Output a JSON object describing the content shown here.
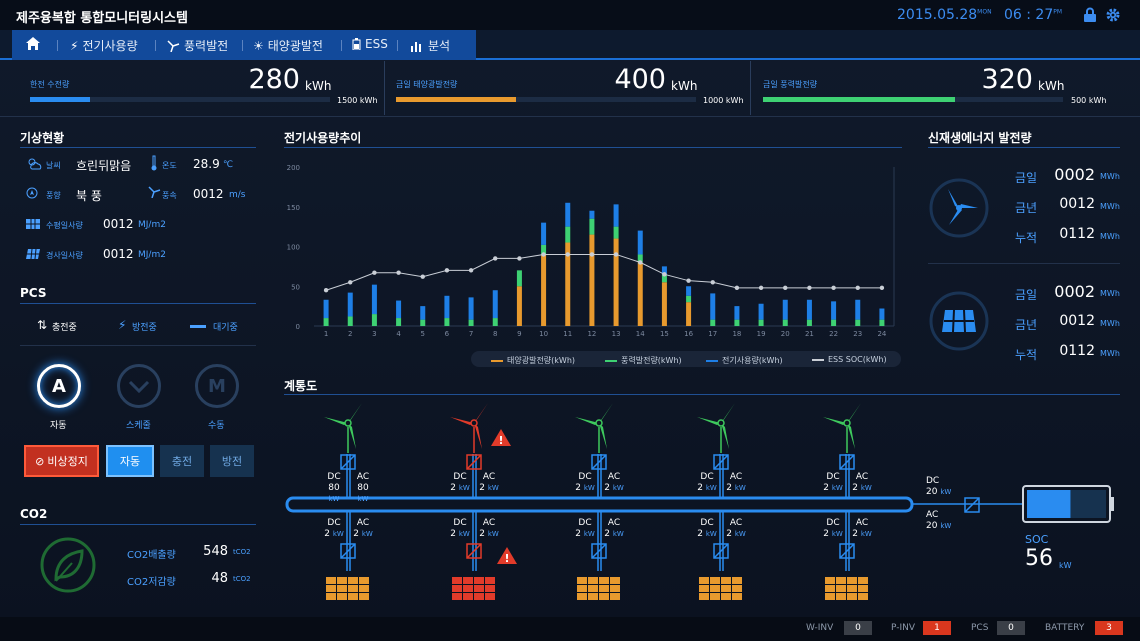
{
  "header": {
    "title": "제주융복합 통합모니터링시스템",
    "date": "2015.05.28",
    "date_sup": "MON",
    "time": "06 : 27",
    "time_sup": "PM"
  },
  "nav": {
    "items": [
      {
        "label": "전기사용량",
        "icon": "bolt-icon"
      },
      {
        "label": "풍력발전",
        "icon": "wind-turbine-icon"
      },
      {
        "label": "태양광발전",
        "icon": "sun-icon"
      },
      {
        "label": "ESS",
        "icon": "battery-icon"
      },
      {
        "label": "분석",
        "icon": "bar-chart-icon"
      }
    ]
  },
  "kpis": [
    {
      "label": "한전 수전량",
      "value": "280",
      "unit": "kWh",
      "max": "1500 kWh",
      "progress": 0.2,
      "color": "#2a8cf0"
    },
    {
      "label": "금일 태양광발전량",
      "value": "400",
      "unit": "kWh",
      "max": "1000 kWh",
      "progress": 0.4,
      "color": "#e89a2e"
    },
    {
      "label": "금일 풍력발전량",
      "value": "320",
      "unit": "kWh",
      "max": "500 kWh",
      "progress": 0.64,
      "color": "#3ed173"
    }
  ],
  "weather": {
    "title": "기상현황",
    "weather_label": "날씨",
    "weather_value": "흐린뒤맑음",
    "temp_label": "온도",
    "temp_value": "28.9",
    "temp_unit": "℃",
    "wdir_label": "풍향",
    "wdir_value": "북 풍",
    "wspeed_label": "풍속",
    "wspeed_value": "0012",
    "wspeed_unit": "m/s",
    "hrad_label": "수평일사량",
    "hrad_value": "0012",
    "hrad_unit": "MJ/m2",
    "irad_label": "경사일사량",
    "irad_value": "0012",
    "irad_unit": "MJ/m2"
  },
  "pcs": {
    "title": "PCS",
    "status": [
      "충전중",
      "방전중",
      "대기중"
    ],
    "modes": [
      {
        "letter": "A",
        "label": "자동"
      },
      {
        "letter": "",
        "label": "스케줄"
      },
      {
        "letter": "M",
        "label": "수동"
      }
    ],
    "buttons": {
      "emergency": "비상정지",
      "auto": "자동",
      "charge": "충전",
      "discharge": "방전"
    }
  },
  "co2": {
    "title": "CO2",
    "emission_label": "CO2배출량",
    "emission_value": "548",
    "reduction_label": "CO2저감량",
    "reduction_value": "48",
    "unit": "tCO2"
  },
  "chart_title": "전기사용량추이",
  "chart_data": {
    "type": "bar",
    "categories": [
      "1",
      "2",
      "3",
      "4",
      "5",
      "6",
      "7",
      "8",
      "9",
      "10",
      "11",
      "12",
      "13",
      "14",
      "15",
      "16",
      "17",
      "18",
      "19",
      "20",
      "21",
      "22",
      "23",
      "24"
    ],
    "ylim": [
      0,
      200
    ],
    "yticks": [
      0,
      50,
      100,
      150,
      200
    ],
    "series": [
      {
        "name": "태양광발전량(kWh)",
        "color": "#e89a2e",
        "values": [
          0,
          0,
          0,
          0,
          0,
          0,
          0,
          0,
          50,
          90,
          105,
          115,
          110,
          80,
          55,
          30,
          0,
          0,
          0,
          0,
          0,
          0,
          0,
          0
        ]
      },
      {
        "name": "풍력발전량(kWh)",
        "color": "#3ed173",
        "values": [
          10,
          12,
          15,
          10,
          8,
          10,
          8,
          10,
          20,
          12,
          20,
          20,
          15,
          10,
          10,
          8,
          8,
          8,
          8,
          8,
          8,
          8,
          8,
          8
        ]
      },
      {
        "name": "전기사용량(kWh)",
        "color": "#1e7fe6",
        "values": [
          23,
          30,
          37,
          22,
          17,
          28,
          28,
          35,
          0,
          28,
          30,
          10,
          28,
          30,
          10,
          12,
          33,
          17,
          20,
          25,
          25,
          23,
          25,
          14
        ]
      },
      {
        "name": "ESS SOC(kWh)",
        "color": "#c9ced6",
        "type": "line",
        "values": [
          45,
          55,
          67,
          67,
          62,
          70,
          70,
          85,
          85,
          90,
          90,
          90,
          90,
          80,
          65,
          57,
          55,
          48,
          48,
          48,
          48,
          48,
          48,
          48
        ]
      }
    ]
  },
  "diagram": {
    "title": "계통도",
    "units": [
      {
        "top_dc": "80",
        "top_ac": "80",
        "bot_dc": "2",
        "bot_ac": "2",
        "top_alert": false,
        "bot_alert": false
      },
      {
        "top_dc": "2",
        "top_ac": "2",
        "bot_dc": "2",
        "bot_ac": "2",
        "top_alert": true,
        "bot_alert": true
      },
      {
        "top_dc": "2",
        "top_ac": "2",
        "bot_dc": "2",
        "bot_ac": "2",
        "top_alert": false,
        "bot_alert": false
      },
      {
        "top_dc": "2",
        "top_ac": "2",
        "bot_dc": "2",
        "bot_ac": "2",
        "top_alert": false,
        "bot_alert": false
      },
      {
        "top_dc": "2",
        "top_ac": "2",
        "bot_dc": "2",
        "bot_ac": "2",
        "top_alert": false,
        "bot_alert": false
      }
    ],
    "dc_label": "DC",
    "ac_label": "AC",
    "kw": "kW",
    "ess_dc": "20",
    "ess_ac": "20",
    "soc_label": "SOC",
    "soc_value": "56",
    "soc_unit": "kW",
    "battery_level": 0.55
  },
  "renewable": {
    "title": "신재생에너지 발전량",
    "wind": {
      "today_label": "금일",
      "today": "0002",
      "year_label": "금년",
      "year": "0012",
      "total_label": "누적",
      "total": "0112",
      "unit": "MWh"
    },
    "solar": {
      "today_label": "금일",
      "today": "0002",
      "year_label": "금년",
      "year": "0012",
      "total_label": "누적",
      "total": "0112",
      "unit": "MWh"
    }
  },
  "status": [
    {
      "label": "W-INV",
      "count": "0",
      "alert": false
    },
    {
      "label": "P-INV",
      "count": "1",
      "alert": true
    },
    {
      "label": "PCS",
      "count": "0",
      "alert": false
    },
    {
      "label": "BATTERY",
      "count": "3",
      "alert": true
    }
  ]
}
